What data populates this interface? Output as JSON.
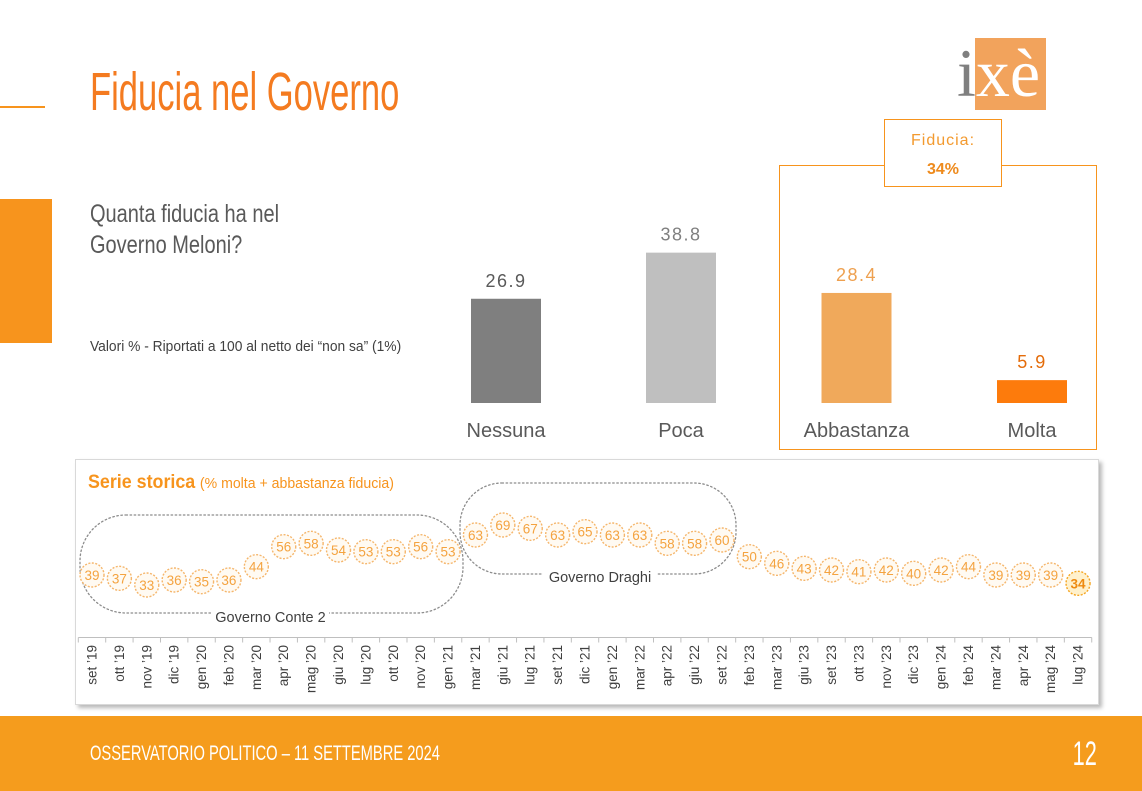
{
  "slide": {
    "title": "Fiducia nel Governo",
    "question": [
      "Quanta fiducia ha nel",
      "Governo Meloni?"
    ],
    "note": "Valori % - Riportati a 100 al netto dei “non sa” (1%)",
    "logo_text": "ixè"
  },
  "callout": {
    "label": "Fiducia:",
    "value": "34%"
  },
  "footer": {
    "text": "OSSERVATORIO POLITICO – 11 SETTEMBRE 2024",
    "page_number": "12"
  },
  "colors": {
    "accent": "#f47b20",
    "brand": "#f7941d",
    "footer": "#f59c1d",
    "text": "#595959"
  },
  "chart_data": [
    {
      "type": "bar",
      "categories": [
        "Nessuna",
        "Poca",
        "Abbastanza",
        "Molta"
      ],
      "values": [
        26.9,
        38.8,
        28.4,
        5.9
      ],
      "colors": [
        "#7f7f7f",
        "#bfbfbf",
        "#f0a95b",
        "#fd7b0c"
      ],
      "label_colors": [
        "#595959",
        "#7f7f7f",
        "#eea04f",
        "#e46c0a"
      ],
      "ylim": [
        0,
        40
      ],
      "grid": false
    },
    {
      "type": "line",
      "title": "Serie storica",
      "subtitle": "(% molta + abbastanza fiducia)",
      "categories": [
        "set ’19",
        "ott ’19",
        "nov ’19",
        "dic ’19",
        "gen ’20",
        "feb ’20",
        "mar ’20",
        "apr ’20",
        "mag ’20",
        "giu ’20",
        "lug ’20",
        "ott ’20",
        "nov ’20",
        "gen ’21",
        "mar ’21",
        "giu ’21",
        "lug ’21",
        "set ’21",
        "dic ’21",
        "gen ’22",
        "mar ’22",
        "apr ’22",
        "giu ’22",
        "set ’22",
        "feb ’23",
        "mar ’23",
        "giu ’23",
        "set ’23",
        "ott ’23",
        "nov ’23",
        "dic ’23",
        "gen ’24",
        "feb ’24",
        "mar ’24",
        "apr ’24",
        "mag ’24",
        "lug ’24"
      ],
      "values": [
        39,
        37,
        33,
        36,
        35,
        36,
        44,
        56,
        58,
        54,
        53,
        53,
        56,
        53,
        63,
        69,
        67,
        63,
        65,
        63,
        63,
        58,
        58,
        60,
        50,
        46,
        43,
        42,
        41,
        42,
        40,
        42,
        44,
        39,
        39,
        39,
        34
      ],
      "annotations": [
        {
          "text": "Governo Conte 2"
        },
        {
          "text": "Governo Draghi"
        }
      ],
      "ylim": [
        0,
        90
      ],
      "grid": false
    }
  ]
}
